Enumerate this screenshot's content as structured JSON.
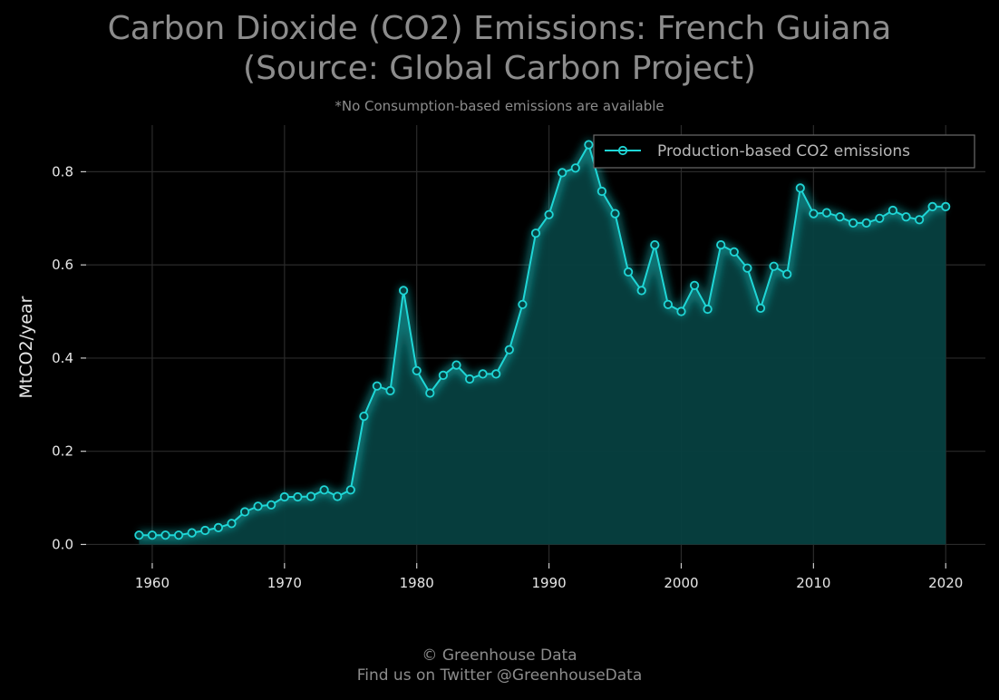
{
  "title_line1": "Carbon Dioxide (CO2) Emissions: French Guiana",
  "title_line2": "(Source: Global Carbon Project)",
  "subtitle": "*No Consumption-based emissions are available",
  "footer_line1": "© Greenhouse Data",
  "footer_line2": "Find us on Twitter @GreenhouseData",
  "colors": {
    "background": "#000000",
    "line": "#1fd6d6",
    "fill": "#064040",
    "grid": "#2a2a2a",
    "text": "#8c8c8c"
  },
  "chart_data": {
    "type": "area",
    "title": "Carbon Dioxide (CO2) Emissions: French Guiana (Source: Global Carbon Project)",
    "xlabel": "",
    "ylabel": "MtCO2/year",
    "xlim": [
      1955,
      2023
    ],
    "ylim": [
      -0.04,
      0.9
    ],
    "xticks": [
      1960,
      1970,
      1980,
      1990,
      2000,
      2010,
      2020
    ],
    "yticks": [
      0.0,
      0.2,
      0.4,
      0.6,
      0.8
    ],
    "ytick_labels": [
      "0.0",
      "0.2",
      "0.4",
      "0.6",
      "0.8"
    ],
    "grid": true,
    "legend_position": "top-right",
    "series": [
      {
        "name": "Production-based CO2 emissions",
        "x": [
          1959,
          1960,
          1961,
          1962,
          1963,
          1964,
          1965,
          1966,
          1967,
          1968,
          1969,
          1970,
          1971,
          1972,
          1973,
          1974,
          1975,
          1976,
          1977,
          1978,
          1979,
          1980,
          1981,
          1982,
          1983,
          1984,
          1985,
          1986,
          1987,
          1988,
          1989,
          1990,
          1991,
          1992,
          1993,
          1994,
          1995,
          1996,
          1997,
          1998,
          1999,
          2000,
          2001,
          2002,
          2003,
          2004,
          2005,
          2006,
          2007,
          2008,
          2009,
          2010,
          2011,
          2012,
          2013,
          2014,
          2015,
          2016,
          2017,
          2018,
          2019,
          2020
        ],
        "y": [
          0.02,
          0.02,
          0.02,
          0.02,
          0.025,
          0.03,
          0.036,
          0.045,
          0.07,
          0.082,
          0.085,
          0.102,
          0.102,
          0.103,
          0.117,
          0.103,
          0.117,
          0.275,
          0.34,
          0.33,
          0.545,
          0.373,
          0.325,
          0.363,
          0.385,
          0.355,
          0.366,
          0.366,
          0.418,
          0.515,
          0.668,
          0.708,
          0.798,
          0.808,
          0.858,
          0.758,
          0.71,
          0.585,
          0.545,
          0.643,
          0.515,
          0.5,
          0.556,
          0.505,
          0.643,
          0.628,
          0.593,
          0.507,
          0.597,
          0.58,
          0.765,
          0.71,
          0.712,
          0.703,
          0.69,
          0.69,
          0.7,
          0.717,
          0.703,
          0.697,
          0.725,
          0.725
        ]
      }
    ]
  }
}
